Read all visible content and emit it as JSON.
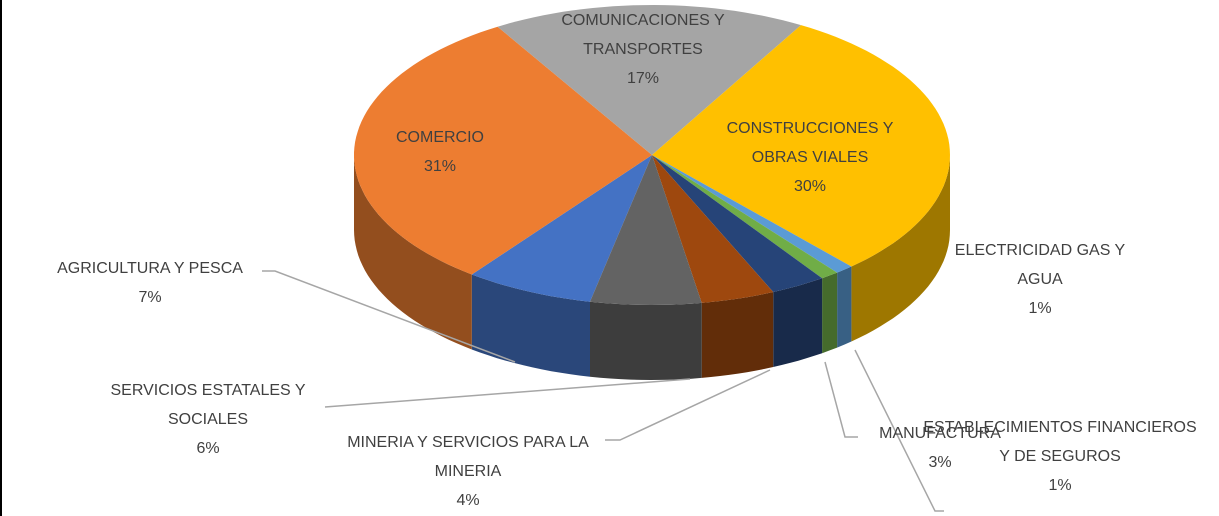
{
  "chart_data": {
    "type": "pie",
    "categories": [
      "AGRICULTURA Y PESCA",
      "COMERCIO",
      "COMUNICACIONES Y TRANSPORTES",
      "CONSTRUCCIONES Y OBRAS VIALES",
      "ELECTRICIDAD GAS Y AGUA",
      "ESTABLECIMIENTOS FINANCIEROS Y DE SEGUROS",
      "MANUFACTURA",
      "MINERIA Y SERVICIOS PARA LA MINERIA",
      "SERVICIOS ESTATALES Y SOCIALES"
    ],
    "values": [
      7,
      31,
      17,
      30,
      1,
      1,
      3,
      4,
      6
    ],
    "value_labels": [
      "7%",
      "31%",
      "17%",
      "30%",
      "1%",
      "1%",
      "3%",
      "4%",
      "6%"
    ],
    "colors": [
      "#4472c4",
      "#ed7d31",
      "#a5a5a5",
      "#ffc000",
      "#5b9bd5",
      "#70ad47",
      "#264478",
      "#9e480e",
      "#636363"
    ]
  }
}
